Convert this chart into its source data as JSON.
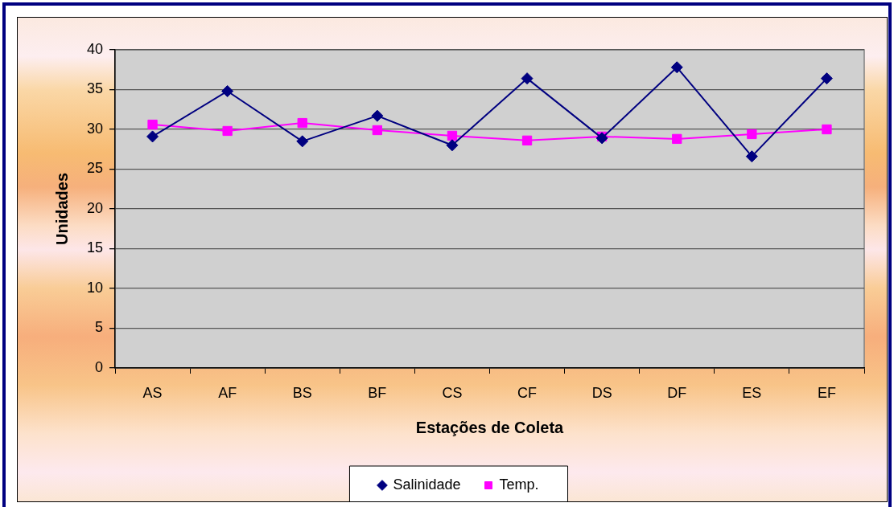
{
  "chart_data": {
    "type": "line",
    "xlabel": "Estações de Coleta",
    "ylabel": "Unidades",
    "categories": [
      "AS",
      "AF",
      "BS",
      "BF",
      "CS",
      "CF",
      "DS",
      "DF",
      "ES",
      "EF"
    ],
    "series": [
      {
        "name": "Salinidade",
        "color": "#000080",
        "marker": "diamond",
        "values": [
          29.1,
          34.8,
          28.5,
          31.7,
          28.0,
          36.4,
          28.9,
          37.8,
          26.6,
          36.4
        ]
      },
      {
        "name": "Temp.",
        "color": "#ff00ff",
        "marker": "square",
        "values": [
          30.6,
          29.8,
          30.8,
          29.9,
          29.2,
          28.6,
          29.1,
          28.8,
          29.4,
          30.0
        ]
      }
    ],
    "ylim": [
      0,
      40
    ],
    "yticks": [
      0,
      5,
      10,
      15,
      20,
      25,
      30,
      35,
      40
    ],
    "grid": "y",
    "legend": "bottom",
    "line_style": "solid"
  }
}
